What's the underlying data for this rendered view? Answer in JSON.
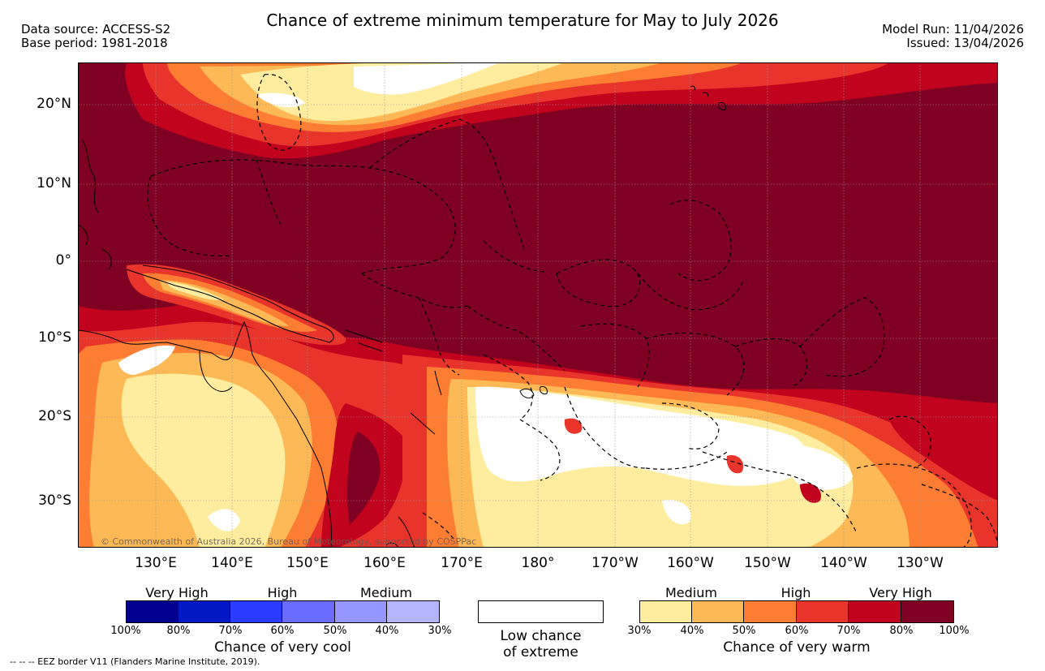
{
  "header": {
    "title": "Chance of extreme minimum temperature for May to July 2026",
    "data_source": "Data source: ACCESS-S2",
    "base_period": "Base period: 1981-2018",
    "model_run": "Model Run: 11/04/2026",
    "issued": "Issued: 13/04/2026"
  },
  "map": {
    "lat_labels": [
      "20°N",
      "10°N",
      "0°",
      "10°S",
      "20°S",
      "30°S"
    ],
    "lon_labels": [
      "130°E",
      "140°E",
      "150°E",
      "160°E",
      "170°E",
      "180°",
      "170°W",
      "160°W",
      "150°W",
      "140°W",
      "130°W"
    ],
    "copyright": "© Commonwealth of Australia 2026, Bureau of Meteorology, supported by COSPPac"
  },
  "legend": {
    "cool": {
      "categories": [
        "Very High",
        "High",
        "Medium"
      ],
      "ticks": [
        "100%",
        "80%",
        "70%",
        "60%",
        "50%",
        "40%",
        "30%"
      ],
      "colors": [
        "#00008f",
        "#0019c4",
        "#2a3cff",
        "#6a6bff",
        "#9596ff",
        "#b5b5ff"
      ],
      "caption": "Chance of very cool"
    },
    "low": {
      "line1": "Low chance",
      "line2": "of extreme"
    },
    "warm": {
      "categories": [
        "Medium",
        "High",
        "Very High"
      ],
      "ticks": [
        "30%",
        "40%",
        "50%",
        "60%",
        "70%",
        "80%",
        "100%"
      ],
      "colors": [
        "#ffed9f",
        "#fdb955",
        "#fd7d33",
        "#e8342a",
        "#c2031d",
        "#7f0023"
      ],
      "caption": "Chance of very warm"
    }
  },
  "footer": {
    "eez_note": "--  --  -- EEZ border V11 (Flanders Marine Institute, 2019)."
  }
}
